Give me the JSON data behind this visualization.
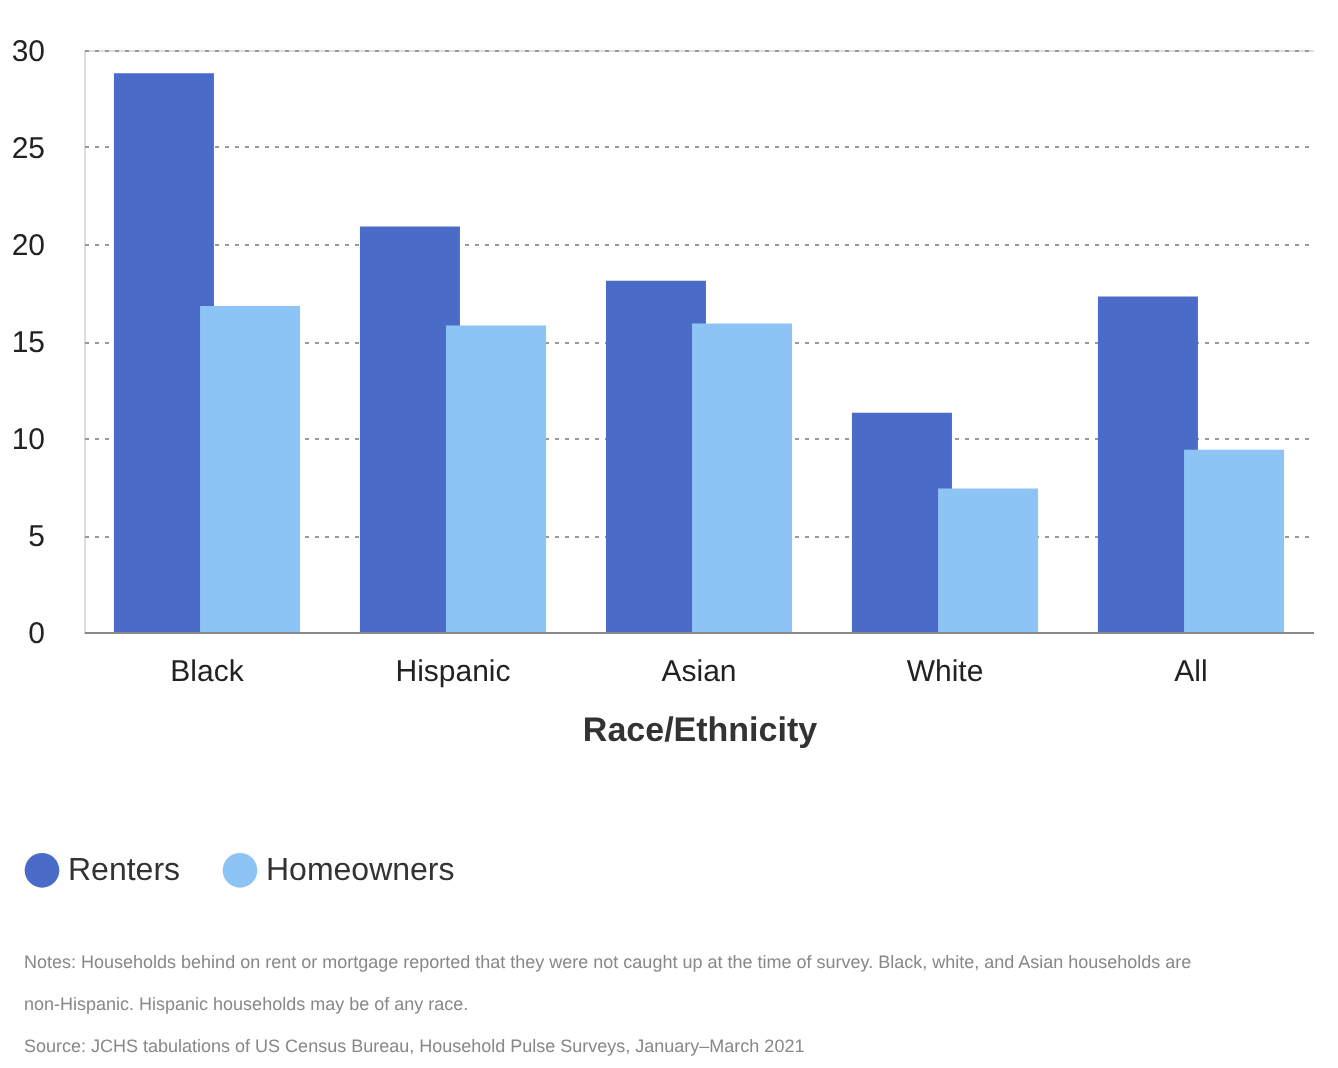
{
  "chart_data": {
    "type": "bar",
    "xlabel": "Race/Ethnicity",
    "categories": [
      "Black",
      "Hispanic",
      "Asian",
      "White",
      "All"
    ],
    "series": [
      {
        "name": "Renters",
        "color": "#4a6cc8",
        "values": [
          28.8,
          20.9,
          18.1,
          11.3,
          17.3
        ]
      },
      {
        "name": "Homeowners",
        "color": "#8ec4f5",
        "values": [
          16.8,
          15.8,
          15.9,
          7.4,
          9.4
        ]
      }
    ],
    "ylim": [
      0,
      30
    ],
    "yticks": [
      0,
      5,
      10,
      15,
      20,
      25,
      30
    ],
    "grid": "y",
    "legend": "bottom left",
    "annotations": [
      "Notes: Households behind on rent or mortgage reported that they were not caught up at the time of survey. Black, white, and Asian households are",
      "non-Hispanic. Hispanic households may be of any race.",
      "Source: JCHS tabulations of US Census Bureau, Household Pulse Surveys, January–March 2021"
    ]
  }
}
